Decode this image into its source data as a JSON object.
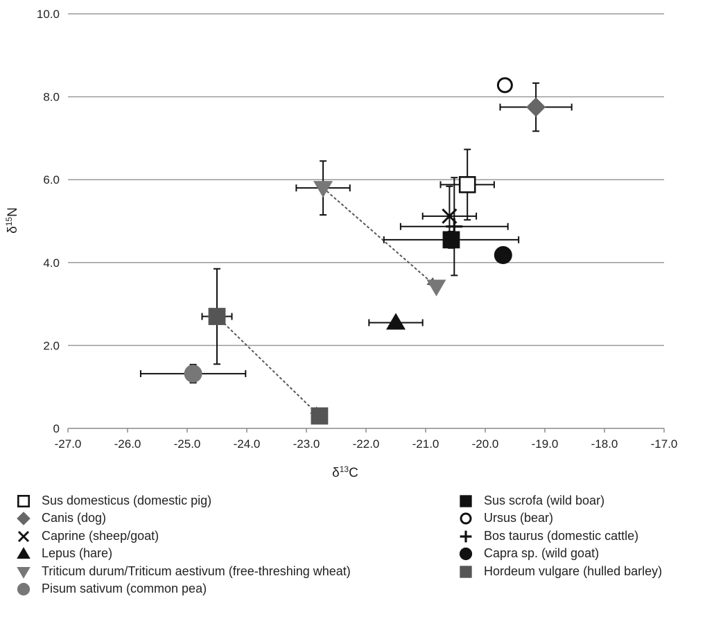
{
  "chart_data": {
    "type": "scatter",
    "xlabel": "δ13C",
    "ylabel": "δ15N",
    "xlim": [
      -27.0,
      -17.0
    ],
    "ylim": [
      0,
      10.0
    ],
    "xticks": [
      "-27.0",
      "-26.0",
      "-25.0",
      "-24.0",
      "-23.0",
      "-22.0",
      "-21.0",
      "-20.0",
      "-19.0",
      "-18.0",
      "-17.0"
    ],
    "yticks": [
      "0",
      "2.0",
      "4.0",
      "6.0",
      "8.0",
      "10.0"
    ],
    "grid": "horizontal",
    "legend_position": "bottom",
    "series": [
      {
        "name": "Sus domesticus (domestic pig)",
        "marker": "square-open",
        "color": "#111111",
        "x": -20.3,
        "y": 5.88,
        "xerr": 0.45,
        "yerr": 0.85
      },
      {
        "name": "Canis (dog)",
        "marker": "diamond",
        "color": "#666666",
        "x": -19.15,
        "y": 7.75,
        "xerr": 0.6,
        "yerr": 0.58
      },
      {
        "name": "Caprine (sheep/goat)",
        "marker": "x",
        "color": "#111111",
        "x": -20.6,
        "y": 5.12,
        "xerr": 0.45,
        "yerr": 0.72
      },
      {
        "name": "Lepus (hare)",
        "marker": "triangle-up",
        "color": "#111111",
        "x": -21.5,
        "y": 2.55,
        "xerr": 0.45,
        "yerr": 0.05
      },
      {
        "name": "Triticum durum/Triticum aestivum (free-threshing wheat)",
        "marker": "triangle-down",
        "color": "#777777",
        "x": -22.72,
        "y": 5.8,
        "xerr": 0.45,
        "yerr": 0.65
      },
      {
        "name": "Triticum durum/Triticum aestivum (free-threshing wheat)",
        "marker": "triangle-down",
        "color": "#777777",
        "x": -20.82,
        "y": 3.42,
        "xerr": 0,
        "yerr": 0
      },
      {
        "name": "Pisum sativum (common pea)",
        "marker": "circle",
        "color": "#777777",
        "x": -24.9,
        "y": 1.32,
        "xerr": 0.88,
        "yerr": 0.22
      },
      {
        "name": "Sus scrofa (wild boar)",
        "marker": "square",
        "color": "#111111",
        "x": -20.57,
        "y": 4.55,
        "xerr": 1.13,
        "yerr": 0.2
      },
      {
        "name": "Ursus (bear)",
        "marker": "circle-open",
        "color": "#111111",
        "x": -19.67,
        "y": 8.28,
        "xerr": 0,
        "yerr": 0
      },
      {
        "name": "Bos taurus (domestic cattle)",
        "marker": "plus",
        "color": "#111111",
        "x": -20.52,
        "y": 4.87,
        "xerr": 0.9,
        "yerr": 1.18
      },
      {
        "name": "Capra sp. (wild goat)",
        "marker": "circle",
        "color": "#111111",
        "x": -19.7,
        "y": 4.18,
        "xerr": 0,
        "yerr": 0
      },
      {
        "name": "Hordeum vulgare (hulled barley)",
        "marker": "square",
        "color": "#555555",
        "x": -24.5,
        "y": 2.7,
        "xerr": 0.25,
        "yerr": 1.15
      },
      {
        "name": "Hordeum vulgare (hulled barley)",
        "marker": "square",
        "color": "#555555",
        "x": -22.78,
        "y": 0.3,
        "xerr": 0,
        "yerr": 0
      }
    ],
    "arrows": [
      {
        "from": [
          -22.72,
          5.8
        ],
        "to": [
          -20.82,
          3.42
        ]
      },
      {
        "from": [
          -24.5,
          2.7
        ],
        "to": [
          -22.78,
          0.3
        ]
      }
    ]
  },
  "legend": {
    "left": [
      {
        "label": "Sus domesticus (domestic pig)",
        "marker": "square-open",
        "color": "#111111"
      },
      {
        "label": "Canis (dog)",
        "marker": "diamond",
        "color": "#666666"
      },
      {
        "label": "Caprine (sheep/goat)",
        "marker": "x",
        "color": "#111111"
      },
      {
        "label": "Lepus (hare)",
        "marker": "triangle-up",
        "color": "#111111"
      },
      {
        "label": "Triticum durum/Triticum aestivum (free-threshing wheat)",
        "marker": "triangle-down",
        "color": "#777777"
      },
      {
        "label": "Pisum sativum (common pea)",
        "marker": "circle",
        "color": "#777777"
      }
    ],
    "right": [
      {
        "label": "Sus scrofa (wild boar)",
        "marker": "square",
        "color": "#111111"
      },
      {
        "label": "Ursus (bear)",
        "marker": "circle-open",
        "color": "#111111"
      },
      {
        "label": "Bos taurus (domestic cattle)",
        "marker": "plus",
        "color": "#111111"
      },
      {
        "label": "Capra sp. (wild goat)",
        "marker": "circle",
        "color": "#111111"
      },
      {
        "label": "Hordeum vulgare (hulled barley)",
        "marker": "square",
        "color": "#555555"
      }
    ]
  }
}
